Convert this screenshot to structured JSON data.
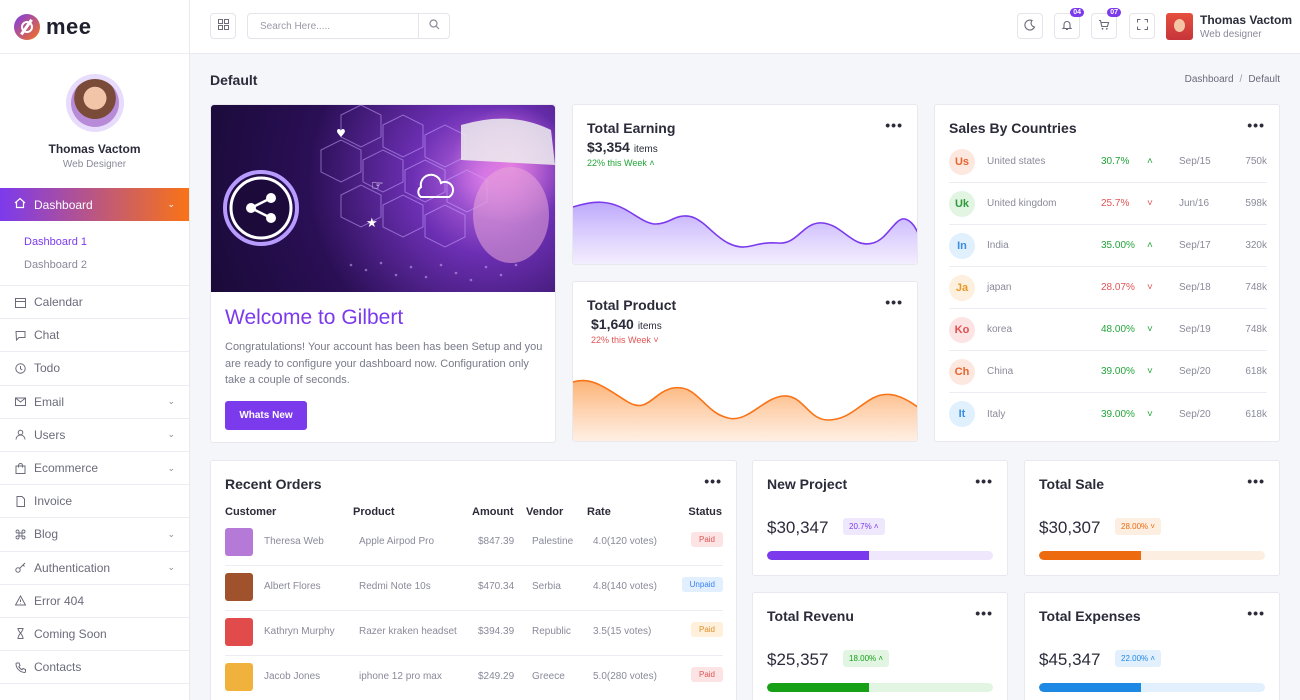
{
  "brand": {
    "name": "mee"
  },
  "sidebar": {
    "profile": {
      "name": "Thomas Vactom",
      "role": "Web Designer"
    },
    "active": {
      "label": "Dashboard"
    },
    "submenu": [
      {
        "label": "Dashboard 1"
      },
      {
        "label": "Dashboard 2"
      }
    ],
    "items": [
      {
        "label": "Calendar"
      },
      {
        "label": "Chat"
      },
      {
        "label": "Todo"
      },
      {
        "label": "Email"
      },
      {
        "label": "Users"
      },
      {
        "label": "Ecommerce"
      },
      {
        "label": "Invoice"
      },
      {
        "label": "Blog"
      },
      {
        "label": "Authentication"
      },
      {
        "label": "Error 404"
      },
      {
        "label": "Coming Soon"
      },
      {
        "label": "Contacts"
      }
    ]
  },
  "header": {
    "search_placeholder": "Search Here.....",
    "notif_count": "04",
    "cart_count": "07",
    "user_name": "Thomas Vactom",
    "user_role": "Web designer"
  },
  "page": {
    "title": "Default",
    "crumb_1": "Dashboard",
    "crumb_sep": "/",
    "crumb_2": "Default"
  },
  "welcome": {
    "title": "Welcome to Gilbert",
    "text": "Congratulations! Your account has been has been Setup and you are ready to configure your dashboard now. Configuration only take a couple of seconds.",
    "button": "Whats New"
  },
  "earning": {
    "title": "Total Earning",
    "value": "$3,354",
    "unit": "items",
    "week": "22% this Week",
    "color": "#7c3aed"
  },
  "product": {
    "title": "Total Product",
    "value": "$1,640",
    "unit": "items",
    "week": "22% this Week",
    "color": "#f97316"
  },
  "countries": {
    "title": "Sales By Countries",
    "rows": [
      {
        "code": "Us",
        "name": "United states",
        "pct": "30.7%",
        "trend": "up",
        "date": "Sep/15",
        "value": "750k",
        "bg": "#fde8e0",
        "fg": "#e8632f"
      },
      {
        "code": "Uk",
        "name": "United kingdom",
        "pct": "25.7%",
        "trend": "down",
        "date": "Jun/16",
        "value": "598k",
        "bg": "#e2f5e3",
        "fg": "#2e9a3c"
      },
      {
        "code": "In",
        "name": "India",
        "pct": "35.00%",
        "trend": "up",
        "date": "Sep/17",
        "value": "320k",
        "bg": "#e0f0fd",
        "fg": "#3b8de0"
      },
      {
        "code": "Ja",
        "name": "japan",
        "pct": "28.07%",
        "trend": "down",
        "date": "Sep/18",
        "value": "748k",
        "bg": "#fdf0de",
        "fg": "#e79a2c"
      },
      {
        "code": "Ko",
        "name": "korea",
        "pct": "48.00%",
        "trend": "down-g",
        "date": "Sep/19",
        "value": "748k",
        "bg": "#fde4e4",
        "fg": "#e05050"
      },
      {
        "code": "Ch",
        "name": "China",
        "pct": "39.00%",
        "trend": "down-g",
        "date": "Sep/20",
        "value": "618k",
        "bg": "#fde8e0",
        "fg": "#e8632f"
      },
      {
        "code": "It",
        "name": "Italy",
        "pct": "39.00%",
        "trend": "down-g",
        "date": "Sep/20",
        "value": "618k",
        "bg": "#e0f0fd",
        "fg": "#3b8de0"
      }
    ]
  },
  "orders": {
    "title": "Recent Orders",
    "headers": {
      "customer": "Customer",
      "product": "Product",
      "amount": "Amount",
      "vendor": "Vendor",
      "rate": "Rate",
      "status": "Status"
    },
    "rows": [
      {
        "customer": "Theresa Web",
        "product": "Apple Airpod Pro",
        "amount": "$847.39",
        "vendor": "Palestine",
        "rate": "4.0(120 votes)",
        "status": "Paid",
        "style": "st-paid",
        "avatar": "#b57ad8"
      },
      {
        "customer": "Albert Flores",
        "product": "Redmi Note 10s",
        "amount": "$470.34",
        "vendor": "Serbia",
        "rate": "4.8(140 votes)",
        "status": "Unpaid",
        "style": "st-unpaid",
        "avatar": "#a0522d"
      },
      {
        "customer": "Kathryn Murphy",
        "product": "Razer kraken headset",
        "amount": "$394.39",
        "vendor": "Republic",
        "rate": "3.5(15 votes)",
        "status": "Paid",
        "style": "st-paid-y",
        "avatar": "#e24b4b"
      },
      {
        "customer": "Jacob Jones",
        "product": "iphone 12 pro max",
        "amount": "$249.29",
        "vendor": "Greece",
        "rate": "5.0(280 votes)",
        "status": "Paid",
        "style": "st-paid",
        "avatar": "#f0b23c"
      }
    ]
  },
  "mini_cards": [
    {
      "title": "New Project",
      "value": "$30,347",
      "pct": "20.7%",
      "arrow": "^",
      "progress": 0.45,
      "fill": "#7c3aed",
      "track": "#efe8fd",
      "pill_bg": "#efe8fd",
      "pill_fg": "#7c3aed"
    },
    {
      "title": "Total Sale",
      "value": "$30,307",
      "pct": "28.00%",
      "arrow": "v",
      "progress": 0.45,
      "fill": "#ee6a0f",
      "track": "#fdeee2",
      "pill_bg": "#fdeee2",
      "pill_fg": "#ee6a0f"
    },
    {
      "title": "Total Revenu",
      "value": "$25,357",
      "pct": "18.00%",
      "arrow": "^",
      "progress": 0.45,
      "fill": "#16a016",
      "track": "#e2f5e3",
      "pill_bg": "#e2f5e3",
      "pill_fg": "#16a016"
    },
    {
      "title": "Total Expenses",
      "value": "$45,347",
      "pct": "22.00%",
      "arrow": "^",
      "progress": 0.45,
      "fill": "#1e88e5",
      "track": "#e2effc",
      "pill_bg": "#e2effc",
      "pill_fg": "#1e88e5"
    }
  ]
}
